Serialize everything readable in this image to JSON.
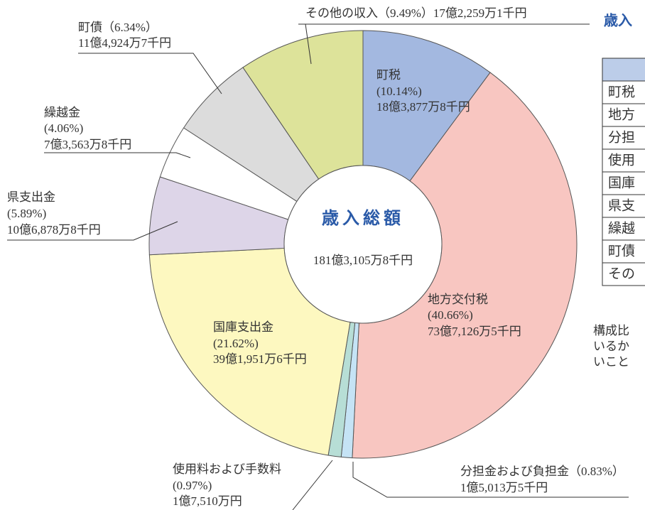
{
  "chart_data": {
    "type": "pie",
    "center_title": "歳入総額",
    "center_value": "181億3,105万8千円",
    "categories": [
      "町税",
      "地方交付税",
      "分担金および負担金",
      "使用料および手数料",
      "国庫支出金",
      "県支出金",
      "繰越金",
      "町債",
      "その他の収入"
    ],
    "values": [
      10.14,
      40.66,
      0.83,
      0.97,
      21.62,
      5.89,
      4.06,
      6.34,
      9.49
    ],
    "value_labels": [
      "(10.14%)",
      "(40.66%)",
      "（0.83%）",
      "(0.97%)",
      "(21.62%)",
      "(5.89%)",
      "(4.06%)",
      "（6.34%）",
      "（9.49%）"
    ],
    "amounts": [
      "18億3,877万8千円",
      "73億7,126万5千円",
      "1億5,013万5千円",
      "1億7,510万円",
      "39億1,951万6千円",
      "10億6,878万8千円",
      "7億3,563万8千円",
      "11億4,924万7千円",
      "17億2,259万1千円"
    ],
    "colors": [
      "#a3b8e0",
      "#f8c6c1",
      "#c5e3f5",
      "#b7ded6",
      "#fdf8c0",
      "#ddd5e8",
      "#ffffff",
      "#dcdcdc",
      "#dde39a"
    ]
  },
  "side": {
    "title": "歳入",
    "rows": [
      "町税",
      "地方",
      "分担",
      "使用",
      "国庫",
      "県支",
      "繰越",
      "町債",
      "その"
    ],
    "note": [
      "構成比",
      "いるか",
      "いこと"
    ]
  }
}
